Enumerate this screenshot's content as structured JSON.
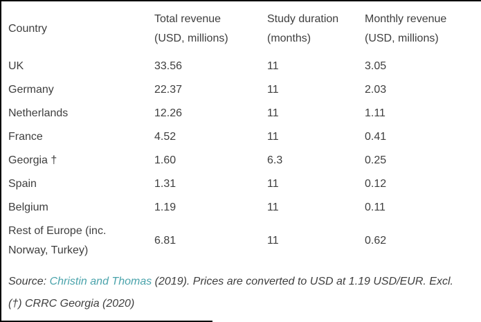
{
  "table": {
    "columns": [
      {
        "label": "Country",
        "sublabel": ""
      },
      {
        "label": "Total revenue",
        "sublabel": "(USD, millions)"
      },
      {
        "label": "Study duration",
        "sublabel": "(months)"
      },
      {
        "label": "Monthly revenue",
        "sublabel": "(USD, millions)"
      }
    ],
    "rows": [
      {
        "country": "UK",
        "total_revenue": "33.56",
        "study_duration": "11",
        "monthly_revenue": "3.05"
      },
      {
        "country": "Germany",
        "total_revenue": "22.37",
        "study_duration": "11",
        "monthly_revenue": "2.03"
      },
      {
        "country": "Netherlands",
        "total_revenue": "12.26",
        "study_duration": "11",
        "monthly_revenue": "1.11"
      },
      {
        "country": "France",
        "total_revenue": "4.52",
        "study_duration": "11",
        "monthly_revenue": "0.41"
      },
      {
        "country": "Georgia †",
        "total_revenue": "1.60",
        "study_duration": "6.3",
        "monthly_revenue": "0.25"
      },
      {
        "country": "Spain",
        "total_revenue": "1.31",
        "study_duration": "11",
        "monthly_revenue": "0.12"
      },
      {
        "country": "Belgium",
        "total_revenue": "1.19",
        "study_duration": "11",
        "monthly_revenue": "0.11"
      },
      {
        "country": "Rest of Europe (inc. Norway, Turkey)",
        "total_revenue": "6.81",
        "study_duration": "11",
        "monthly_revenue": "0.62"
      }
    ]
  },
  "footer": {
    "source_prefix": "Source: ",
    "source_link": "Christin and Thomas",
    "source_suffix": " (2019). Prices are converted to USD at 1.19 USD/EUR. Excl.",
    "footnote_line2": "(†) CRRC Georgia (2020)"
  },
  "colors": {
    "text": "#3e3e3e",
    "link": "#4aa3ab",
    "border": "#000000"
  },
  "chart_data": {
    "type": "table",
    "title": "",
    "columns": [
      "Country",
      "Total revenue (USD, millions)",
      "Study duration (months)",
      "Monthly revenue (USD, millions)"
    ],
    "rows": [
      [
        "UK",
        33.56,
        11,
        3.05
      ],
      [
        "Germany",
        22.37,
        11,
        2.03
      ],
      [
        "Netherlands",
        12.26,
        11,
        1.11
      ],
      [
        "France",
        4.52,
        11,
        0.41
      ],
      [
        "Georgia †",
        1.6,
        6.3,
        0.25
      ],
      [
        "Spain",
        1.31,
        11,
        0.12
      ],
      [
        "Belgium",
        1.19,
        11,
        0.11
      ],
      [
        "Rest of Europe (inc. Norway, Turkey)",
        6.81,
        11,
        0.62
      ]
    ]
  }
}
